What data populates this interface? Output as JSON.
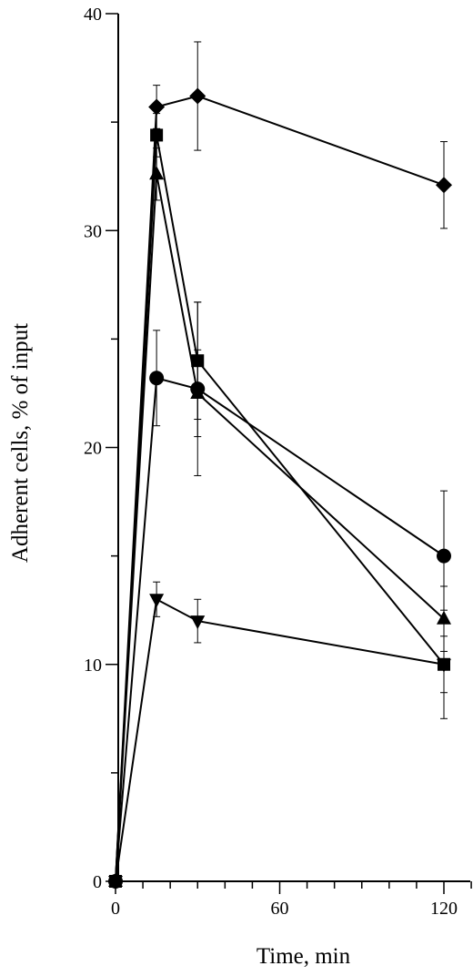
{
  "chart_data": {
    "type": "line",
    "xlabel": "Time, min",
    "ylabel": "Adherent cells, % of input",
    "xlim": [
      -5,
      140
    ],
    "ylim": [
      0,
      40
    ],
    "x_ticks": [
      0,
      60,
      120
    ],
    "y_ticks": [
      0,
      10,
      20,
      30,
      40
    ],
    "x_minor_step": 10,
    "y_minor_step": 5,
    "grid": false,
    "legend": "none",
    "marker_color": "#000000",
    "series": [
      {
        "marker": "diamond",
        "x": [
          0,
          15,
          30,
          120
        ],
        "y": [
          0,
          35.7,
          36.2,
          32.1
        ],
        "err": [
          0,
          1.0,
          2.5,
          2.0
        ]
      },
      {
        "marker": "square",
        "x": [
          0,
          15,
          30,
          120
        ],
        "y": [
          0,
          34.4,
          24.0,
          10.0
        ],
        "err": [
          0,
          1.0,
          2.7,
          2.5
        ]
      },
      {
        "marker": "triangle-up",
        "x": [
          0,
          15,
          30,
          120
        ],
        "y": [
          0,
          32.6,
          22.5,
          12.1
        ],
        "err": [
          0,
          1.2,
          2.0,
          1.5
        ]
      },
      {
        "marker": "circle",
        "x": [
          0,
          15,
          30,
          120
        ],
        "y": [
          0,
          23.2,
          22.7,
          15.0
        ],
        "err": [
          0,
          2.2,
          4.0,
          3.0
        ]
      },
      {
        "marker": "triangle-down",
        "x": [
          0,
          15,
          30,
          120
        ],
        "y": [
          0,
          13.0,
          12.0,
          10.0
        ],
        "err": [
          0,
          0.8,
          1.0,
          1.3
        ]
      }
    ]
  }
}
